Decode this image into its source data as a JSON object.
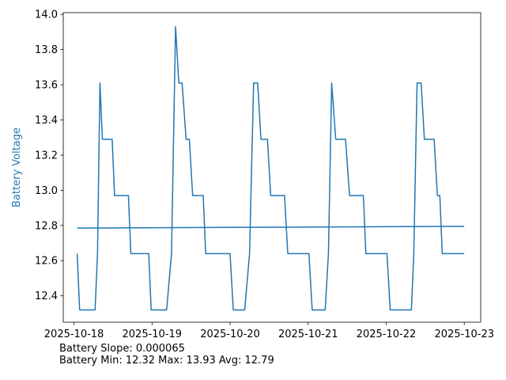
{
  "chart_data": {
    "type": "line",
    "title": "",
    "xlabel": "",
    "ylabel": "Battery Voltage",
    "ylabel_color": "#1f77b4",
    "line_color": "#1f77b4",
    "x_ticks": [
      "2025-10-18",
      "2025-10-19",
      "2025-10-20",
      "2025-10-21",
      "2025-10-22",
      "2025-10-23"
    ],
    "y_ticks": [
      12.4,
      12.6,
      12.8,
      13.0,
      13.2,
      13.4,
      13.6,
      13.8,
      14.0
    ],
    "xlim": [
      "2025-10-17T20:42",
      "2025-10-23T05:03"
    ],
    "ylim": [
      12.25,
      14.01
    ],
    "grid": false,
    "legend": "none",
    "series": [
      {
        "values": [
          [
            "2025-10-18T00:59",
            12.64
          ],
          [
            "2025-10-18T01:44",
            12.32
          ],
          [
            "2025-10-18T06:29",
            12.32
          ],
          [
            "2025-10-18T07:14",
            12.64
          ],
          [
            "2025-10-18T07:59",
            13.61
          ],
          [
            "2025-10-18T08:44",
            13.29
          ],
          [
            "2025-10-18T11:44",
            13.29
          ],
          [
            "2025-10-18T12:29",
            12.97
          ],
          [
            "2025-10-18T16:44",
            12.97
          ],
          [
            "2025-10-18T17:29",
            12.64
          ],
          [
            "2025-10-18T22:59",
            12.64
          ],
          [
            "2025-10-18T23:44",
            12.32
          ],
          [
            "2025-10-19T04:29",
            12.32
          ],
          [
            "2025-10-19T05:59",
            12.64
          ],
          [
            "2025-10-19T07:14",
            13.93
          ],
          [
            "2025-10-19T08:14",
            13.61
          ],
          [
            "2025-10-19T09:14",
            13.61
          ],
          [
            "2025-10-19T10:29",
            13.29
          ],
          [
            "2025-10-19T11:29",
            13.29
          ],
          [
            "2025-10-19T12:29",
            12.97
          ],
          [
            "2025-10-19T15:44",
            12.97
          ],
          [
            "2025-10-19T16:29",
            12.64
          ],
          [
            "2025-10-19T23:59",
            12.64
          ],
          [
            "2025-10-20T00:59",
            12.32
          ],
          [
            "2025-10-20T04:29",
            12.32
          ],
          [
            "2025-10-20T05:59",
            12.64
          ],
          [
            "2025-10-20T07:14",
            13.61
          ],
          [
            "2025-10-20T08:29",
            13.61
          ],
          [
            "2025-10-20T09:29",
            13.29
          ],
          [
            "2025-10-20T11:29",
            13.29
          ],
          [
            "2025-10-20T12:29",
            12.97
          ],
          [
            "2025-10-20T16:44",
            12.97
          ],
          [
            "2025-10-20T17:44",
            12.64
          ],
          [
            "2025-10-21T00:14",
            12.64
          ],
          [
            "2025-10-21T01:14",
            12.32
          ],
          [
            "2025-10-21T05:14",
            12.32
          ],
          [
            "2025-10-21T06:14",
            12.64
          ],
          [
            "2025-10-21T07:14",
            13.61
          ],
          [
            "2025-10-21T08:29",
            13.29
          ],
          [
            "2025-10-21T11:29",
            13.29
          ],
          [
            "2025-10-21T12:44",
            12.97
          ],
          [
            "2025-10-21T16:59",
            12.97
          ],
          [
            "2025-10-21T17:44",
            12.64
          ],
          [
            "2025-10-22T00:14",
            12.64
          ],
          [
            "2025-10-22T01:14",
            12.32
          ],
          [
            "2025-10-22T07:44",
            12.32
          ],
          [
            "2025-10-22T08:29",
            12.64
          ],
          [
            "2025-10-22T09:29",
            13.61
          ],
          [
            "2025-10-22T10:44",
            13.61
          ],
          [
            "2025-10-22T11:44",
            13.29
          ],
          [
            "2025-10-22T14:44",
            13.29
          ],
          [
            "2025-10-22T15:44",
            12.97
          ],
          [
            "2025-10-22T16:29",
            12.97
          ],
          [
            "2025-10-22T17:14",
            12.64
          ],
          [
            "2025-10-22T23:59",
            12.64
          ]
        ]
      },
      {
        "values": [
          [
            "2025-10-18T00:59",
            12.785
          ],
          [
            "2025-10-22T23:59",
            12.795
          ]
        ]
      }
    ]
  },
  "stats": {
    "line1": "Battery Slope: 0.000065",
    "line2": "Battery Min: 12.32 Max: 13.93 Avg: 12.79"
  }
}
